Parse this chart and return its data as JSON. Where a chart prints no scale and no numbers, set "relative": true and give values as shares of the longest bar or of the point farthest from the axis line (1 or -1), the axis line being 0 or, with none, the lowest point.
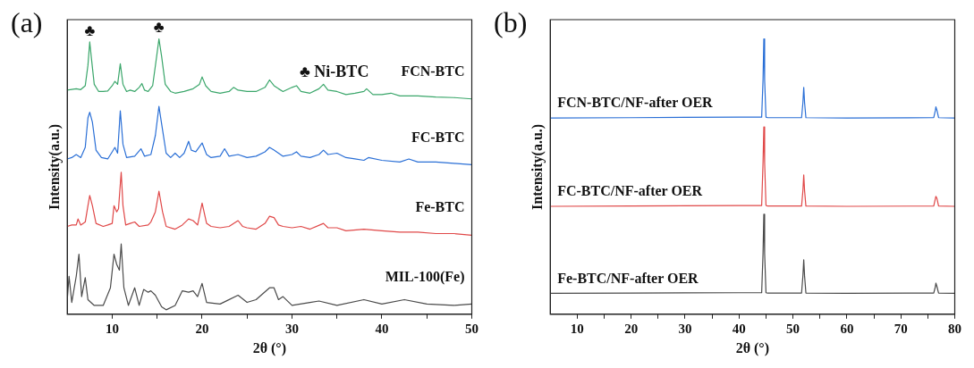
{
  "chart_data": [
    {
      "type": "line",
      "title": "(a)",
      "xlabel": "2θ (°)",
      "ylabel": "Intensity(a.u.)",
      "relative": true,
      "xlim": [
        5,
        50
      ],
      "xticks": [
        10,
        {
          "value": 15,
          "label": null
        },
        20,
        {
          "value": 25,
          "label": null
        },
        30,
        {
          "value": 35,
          "label": null
        },
        40,
        {
          "value": 45,
          "label": null
        },
        50
      ],
      "grid": false,
      "legend": false,
      "marker": "none",
      "line_style": "solid",
      "annotations": [
        {
          "text": "♣",
          "x": 7.5,
          "y": 0.989
        },
        {
          "text": "♣",
          "x": 15.2,
          "y": 1.0
        },
        "♣ Ni-BTC"
      ],
      "series": [
        {
          "name": "FCN-BTC",
          "color": "#3aa66a",
          "x": [
            5,
            6,
            6.5,
            7,
            7.3,
            7.5,
            7.7,
            8,
            8.5,
            9,
            9.5,
            10,
            10.3,
            10.6,
            10.9,
            11.2,
            11.6,
            12,
            12.5,
            13,
            13.3,
            13.6,
            14,
            14.5,
            14.9,
            15.2,
            15.5,
            15.9,
            16.5,
            17,
            18,
            19,
            19.7,
            20,
            20.4,
            21,
            22,
            23,
            23.5,
            24,
            25,
            26,
            27,
            27.5,
            28,
            28.5,
            29,
            30,
            30.5,
            31,
            32,
            33,
            33.5,
            34,
            35,
            36,
            37,
            38,
            38.3,
            39,
            40,
            41,
            42,
            44,
            46,
            48,
            50
          ],
          "values": [
            0.814,
            0.819,
            0.816,
            0.83,
            0.904,
            0.989,
            0.926,
            0.835,
            0.809,
            0.809,
            0.811,
            0.83,
            0.846,
            0.835,
            0.91,
            0.835,
            0.809,
            0.814,
            0.809,
            0.824,
            0.838,
            0.814,
            0.809,
            0.83,
            0.926,
            1.0,
            0.936,
            0.835,
            0.809,
            0.803,
            0.809,
            0.819,
            0.835,
            0.862,
            0.83,
            0.809,
            0.803,
            0.809,
            0.824,
            0.814,
            0.809,
            0.809,
            0.824,
            0.851,
            0.83,
            0.819,
            0.809,
            0.824,
            0.83,
            0.809,
            0.803,
            0.819,
            0.835,
            0.814,
            0.809,
            0.798,
            0.803,
            0.809,
            0.819,
            0.798,
            0.798,
            0.803,
            0.793,
            0.793,
            0.789,
            0.787,
            0.782
          ]
        },
        {
          "name": "FC-BTC",
          "color": "#2a6fd6",
          "x": [
            5,
            5.5,
            6,
            6.5,
            7,
            7.3,
            7.5,
            7.8,
            8.2,
            8.8,
            9.5,
            10,
            10.3,
            10.6,
            10.9,
            11.2,
            11.6,
            12.5,
            13.2,
            13.6,
            14.3,
            14.8,
            15.2,
            15.6,
            16,
            16.5,
            17,
            17.5,
            18,
            18.5,
            18.8,
            19.3,
            20,
            20.5,
            21,
            22,
            22.5,
            23,
            24,
            25,
            26,
            27,
            27.5,
            28,
            29,
            30,
            30.5,
            31,
            32,
            33,
            33.5,
            34,
            35,
            36,
            37,
            38,
            38.5,
            40,
            42,
            43,
            44,
            46,
            48,
            50
          ],
          "values": [
            0.564,
            0.569,
            0.58,
            0.569,
            0.606,
            0.713,
            0.734,
            0.697,
            0.596,
            0.569,
            0.564,
            0.59,
            0.606,
            0.585,
            0.739,
            0.617,
            0.569,
            0.574,
            0.601,
            0.574,
            0.58,
            0.649,
            0.755,
            0.67,
            0.585,
            0.569,
            0.585,
            0.569,
            0.585,
            0.628,
            0.596,
            0.59,
            0.622,
            0.58,
            0.569,
            0.574,
            0.601,
            0.574,
            0.58,
            0.569,
            0.574,
            0.59,
            0.606,
            0.596,
            0.574,
            0.58,
            0.59,
            0.574,
            0.569,
            0.58,
            0.596,
            0.58,
            0.585,
            0.569,
            0.564,
            0.559,
            0.569,
            0.559,
            0.553,
            0.564,
            0.553,
            0.553,
            0.548,
            0.543
          ]
        },
        {
          "name": "Fe-BTC",
          "color": "#e04848",
          "x": [
            5,
            5.5,
            6,
            6.2,
            6.5,
            7,
            7.3,
            7.5,
            7.8,
            8.2,
            9,
            9.5,
            10,
            10.2,
            10.5,
            10.7,
            11,
            11.2,
            11.5,
            12,
            12.5,
            13,
            14,
            14.3,
            14.8,
            15.2,
            15.6,
            16,
            17,
            17.8,
            18.5,
            19,
            19.5,
            20,
            20.5,
            21,
            22,
            23,
            24,
            24.5,
            25,
            26,
            27,
            27.5,
            28,
            28.5,
            29,
            30,
            31,
            32,
            33.5,
            34,
            35,
            36,
            38,
            40,
            42,
            44,
            46,
            48,
            50
          ],
          "values": [
            0.319,
            0.324,
            0.324,
            0.346,
            0.324,
            0.335,
            0.394,
            0.431,
            0.394,
            0.33,
            0.319,
            0.324,
            0.33,
            0.394,
            0.372,
            0.383,
            0.516,
            0.394,
            0.324,
            0.33,
            0.335,
            0.319,
            0.324,
            0.335,
            0.372,
            0.447,
            0.372,
            0.319,
            0.309,
            0.324,
            0.346,
            0.34,
            0.324,
            0.404,
            0.33,
            0.319,
            0.314,
            0.319,
            0.34,
            0.319,
            0.314,
            0.309,
            0.33,
            0.356,
            0.351,
            0.324,
            0.319,
            0.314,
            0.319,
            0.309,
            0.33,
            0.314,
            0.314,
            0.303,
            0.309,
            0.303,
            0.298,
            0.298,
            0.293,
            0.293,
            0.287
          ]
        },
        {
          "name": "MIL-100(Fe)",
          "color": "#4a4a4a",
          "x": [
            5,
            5.2,
            5.5,
            6,
            6.3,
            6.6,
            7,
            7.3,
            8,
            9,
            9.8,
            10.2,
            10.5,
            10.8,
            11,
            11.3,
            11.8,
            12.5,
            13,
            13.5,
            14,
            14.3,
            14.8,
            15.5,
            16,
            17,
            17.8,
            18.5,
            19,
            19.5,
            20,
            20.5,
            22,
            24,
            25,
            26,
            27.5,
            28,
            28.5,
            29,
            30,
            32,
            33,
            35,
            38,
            40,
            42.5,
            45,
            48,
            50
          ],
          "values": [
            0.053,
            0.138,
            0.043,
            0.138,
            0.218,
            0.064,
            0.133,
            0.053,
            0.032,
            0.032,
            0.096,
            0.218,
            0.181,
            0.16,
            0.255,
            0.096,
            0.032,
            0.096,
            0.032,
            0.09,
            0.08,
            0.085,
            0.069,
            0.027,
            0.016,
            0.032,
            0.085,
            0.08,
            0.085,
            0.064,
            0.112,
            0.043,
            0.037,
            0.069,
            0.043,
            0.053,
            0.096,
            0.096,
            0.053,
            0.064,
            0.032,
            0.043,
            0.048,
            0.032,
            0.053,
            0.037,
            0.053,
            0.037,
            0.032,
            0.037
          ]
        }
      ]
    },
    {
      "type": "line",
      "title": "(b)",
      "xlabel": "2θ (°)",
      "ylabel": "Intensity(a.u.)",
      "relative": true,
      "xlim": [
        5,
        80
      ],
      "xticks": [
        10,
        {
          "value": 15,
          "label": null
        },
        20,
        {
          "value": 25,
          "label": null
        },
        30,
        {
          "value": 35,
          "label": null
        },
        40,
        {
          "value": 45,
          "label": null
        },
        50,
        {
          "value": 55,
          "label": null
        },
        60,
        {
          "value": 65,
          "label": null
        },
        70,
        {
          "value": 75,
          "label": null
        },
        80
      ],
      "grid": false,
      "legend": false,
      "marker": "none",
      "line_style": "solid",
      "series": [
        {
          "name": "FCN-BTC/NF-after OER",
          "color": "#2a6fd6",
          "x": [
            5,
            20,
            40,
            44.2,
            44.45,
            44.6,
            44.75,
            45,
            45.3,
            51.6,
            51.85,
            52,
            52.15,
            52.4,
            60,
            76.1,
            76.4,
            76.5,
            76.7,
            77,
            80
          ],
          "values": [
            0.713,
            0.714,
            0.716,
            0.716,
            0.85,
            1.0,
            0.85,
            0.716,
            0.714,
            0.714,
            0.77,
            0.824,
            0.77,
            0.714,
            0.713,
            0.714,
            0.74,
            0.753,
            0.74,
            0.714,
            0.713
          ]
        },
        {
          "name": "FC-BTC/NF-after OER",
          "color": "#e04848",
          "x": [
            5,
            20,
            40,
            44.2,
            44.45,
            44.6,
            44.75,
            45,
            45.3,
            51.6,
            51.85,
            52,
            52.15,
            52.4,
            60,
            76.1,
            76.4,
            76.5,
            76.7,
            77,
            80
          ],
          "values": [
            0.392,
            0.393,
            0.395,
            0.395,
            0.55,
            0.68,
            0.55,
            0.395,
            0.393,
            0.393,
            0.45,
            0.506,
            0.45,
            0.393,
            0.392,
            0.393,
            0.42,
            0.428,
            0.42,
            0.393,
            0.392
          ]
        },
        {
          "name": "Fe-BTC/NF-after OER",
          "color": "#4a4a4a",
          "x": [
            5,
            20,
            40,
            44.2,
            44.45,
            44.6,
            44.75,
            45,
            45.3,
            51.6,
            51.85,
            52,
            52.15,
            52.4,
            60,
            76.1,
            76.4,
            76.5,
            76.7,
            77,
            80
          ],
          "values": [
            0.076,
            0.077,
            0.078,
            0.078,
            0.22,
            0.363,
            0.22,
            0.078,
            0.077,
            0.077,
            0.14,
            0.198,
            0.14,
            0.077,
            0.076,
            0.077,
            0.1,
            0.113,
            0.1,
            0.077,
            0.076
          ]
        }
      ]
    }
  ]
}
